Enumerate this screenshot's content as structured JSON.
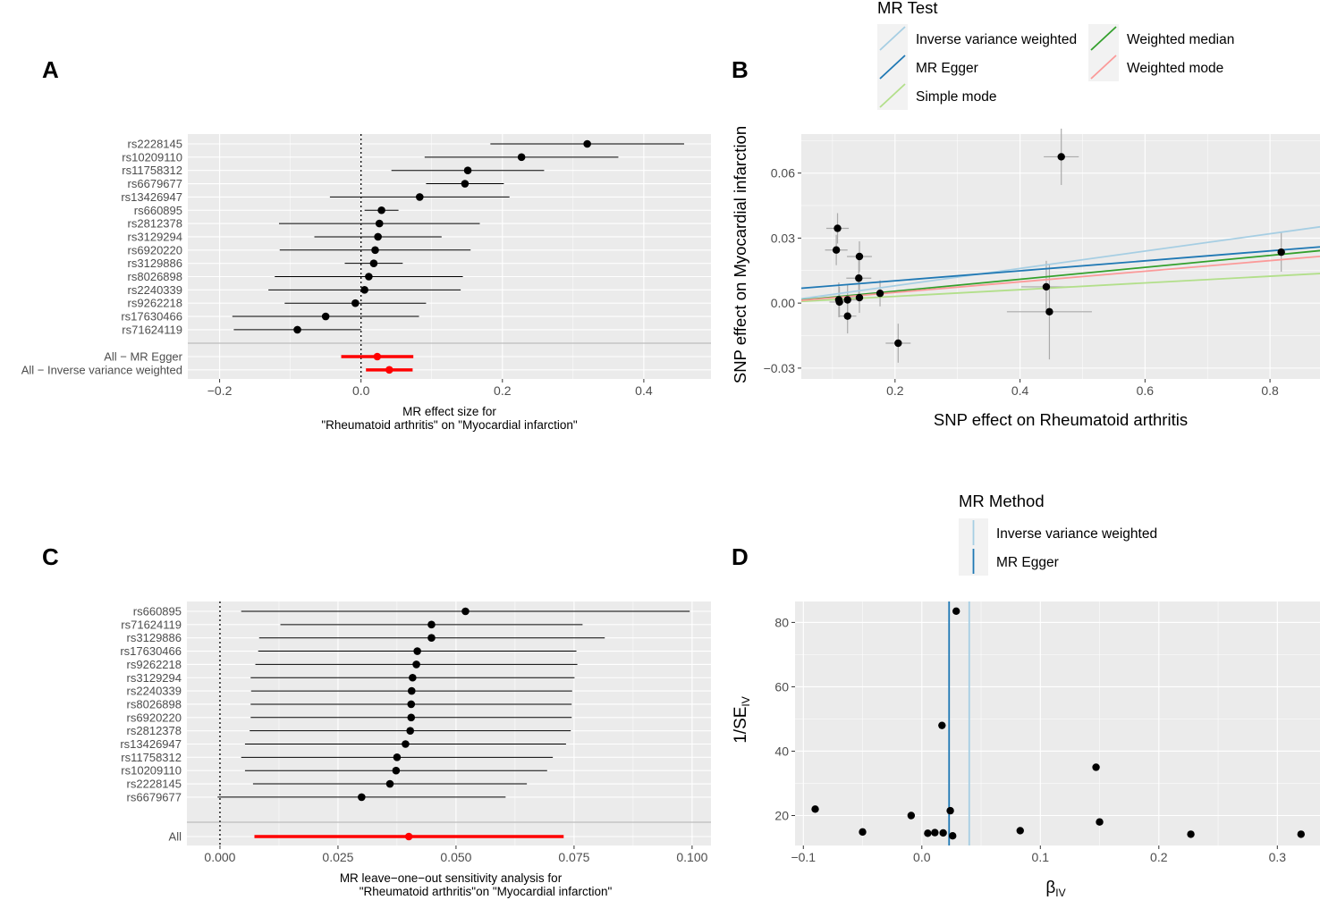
{
  "panels": {
    "A": "A",
    "B": "B",
    "C": "C",
    "D": "D"
  },
  "colors": {
    "panel_bg": "#ebebeb",
    "grid": "#ffffff",
    "point": "#000000",
    "summary": "#ff0000",
    "ivw": "#a6cee3",
    "egger": "#1f78b4",
    "simple_mode": "#b2df8a",
    "weighted_median": "#33a02c",
    "weighted_mode": "#fb9a99",
    "errbar": "#aaaaaa"
  },
  "chart_data": [
    {
      "id": "A",
      "type": "forest",
      "xlabel_line1": "MR effect size for",
      "xlabel_line2": "\"Rheumatoid arthritis\" on \"Myocardial infarction\"",
      "xlim": [
        -0.245,
        0.495
      ],
      "xticks": [
        -0.2,
        0.0,
        0.2,
        0.4
      ],
      "xtick_labels": [
        "−0.2",
        "0.0",
        "0.2",
        "0.4"
      ],
      "reference_x": 0,
      "snps": [
        {
          "label": "rs2228145",
          "b": 0.32,
          "lo": 0.183,
          "hi": 0.457
        },
        {
          "label": "rs10209110",
          "b": 0.227,
          "lo": 0.09,
          "hi": 0.364
        },
        {
          "label": "rs11758312",
          "b": 0.151,
          "lo": 0.043,
          "hi": 0.259
        },
        {
          "label": "rs6679677",
          "b": 0.147,
          "lo": 0.092,
          "hi": 0.202
        },
        {
          "label": "rs13426947",
          "b": 0.083,
          "lo": -0.044,
          "hi": 0.21
        },
        {
          "label": "rs660895",
          "b": 0.029,
          "lo": 0.005,
          "hi": 0.053
        },
        {
          "label": "rs2812378",
          "b": 0.026,
          "lo": -0.116,
          "hi": 0.168
        },
        {
          "label": "rs3129294",
          "b": 0.024,
          "lo": -0.066,
          "hi": 0.114
        },
        {
          "label": "rs6920220",
          "b": 0.02,
          "lo": -0.115,
          "hi": 0.155
        },
        {
          "label": "rs3129886",
          "b": 0.018,
          "lo": -0.023,
          "hi": 0.059
        },
        {
          "label": "rs8026898",
          "b": 0.011,
          "lo": -0.122,
          "hi": 0.144
        },
        {
          "label": "rs2240339",
          "b": 0.005,
          "lo": -0.131,
          "hi": 0.141
        },
        {
          "label": "rs9262218",
          "b": -0.008,
          "lo": -0.108,
          "hi": 0.092
        },
        {
          "label": "rs17630466",
          "b": -0.05,
          "lo": -0.182,
          "hi": 0.082
        },
        {
          "label": "rs71624119",
          "b": -0.09,
          "lo": -0.18,
          "hi": 0.0
        }
      ],
      "summary": [
        {
          "label": "All − MR Egger",
          "b": 0.023,
          "lo": -0.028,
          "hi": 0.074
        },
        {
          "label": "All − Inverse variance weighted",
          "b": 0.04,
          "lo": 0.007,
          "hi": 0.073
        }
      ]
    },
    {
      "id": "B",
      "type": "scatter",
      "xlabel": "SNP effect on Rheumatoid arthritis",
      "ylabel": "SNP effect on Myocardial infarction",
      "xlim": [
        0.05,
        0.88
      ],
      "ylim": [
        -0.035,
        0.078
      ],
      "xticks": [
        0.2,
        0.4,
        0.6,
        0.8
      ],
      "xtick_labels": [
        "0.2",
        "0.4",
        "0.6",
        "0.8"
      ],
      "yticks": [
        -0.03,
        0.0,
        0.03,
        0.06
      ],
      "ytick_labels": [
        "−0.03",
        "0.00",
        "0.03",
        "0.06"
      ],
      "legend_title": "MR Test",
      "points": [
        {
          "x": 0.466,
          "y": 0.0675,
          "xse": 0.028,
          "yse": 0.013
        },
        {
          "x": 0.108,
          "y": 0.0345,
          "xse": 0.018,
          "yse": 0.007
        },
        {
          "x": 0.106,
          "y": 0.0245,
          "xse": 0.018,
          "yse": 0.007
        },
        {
          "x": 0.143,
          "y": 0.0215,
          "xse": 0.02,
          "yse": 0.007
        },
        {
          "x": 0.142,
          "y": 0.0115,
          "xse": 0.02,
          "yse": 0.009
        },
        {
          "x": 0.176,
          "y": 0.0045,
          "xse": 0.012,
          "yse": 0.006
        },
        {
          "x": 0.11,
          "y": 0.0015,
          "xse": 0.016,
          "yse": 0.008
        },
        {
          "x": 0.124,
          "y": 0.0015,
          "xse": 0.017,
          "yse": 0.007
        },
        {
          "x": 0.143,
          "y": 0.0025,
          "xse": 0.018,
          "yse": 0.007
        },
        {
          "x": 0.111,
          "y": 0.0005,
          "xse": 0.016,
          "yse": 0.007
        },
        {
          "x": 0.124,
          "y": -0.006,
          "xse": 0.014,
          "yse": 0.008
        },
        {
          "x": 0.205,
          "y": -0.0185,
          "xse": 0.02,
          "yse": 0.009
        },
        {
          "x": 0.442,
          "y": 0.0075,
          "xse": 0.04,
          "yse": 0.012
        },
        {
          "x": 0.447,
          "y": -0.004,
          "xse": 0.068,
          "yse": 0.022
        },
        {
          "x": 0.818,
          "y": 0.0235,
          "xse": 0.006,
          "yse": 0.009
        }
      ],
      "lines": [
        {
          "name": "Inverse variance weighted",
          "intercept": 0.0,
          "slope": 0.04,
          "color_key": "ivw",
          "legend_col": 0
        },
        {
          "name": "MR Egger",
          "intercept": 0.0057,
          "slope": 0.023,
          "color_key": "egger",
          "legend_col": 0
        },
        {
          "name": "Simple mode",
          "intercept": 0.0,
          "slope": 0.0155,
          "color_key": "simple_mode",
          "legend_col": 0
        },
        {
          "name": "Weighted median",
          "intercept": 0.0,
          "slope": 0.0275,
          "color_key": "weighted_median",
          "legend_col": 1
        },
        {
          "name": "Weighted mode",
          "intercept": 0.0,
          "slope": 0.0245,
          "color_key": "weighted_mode",
          "legend_col": 1
        }
      ]
    },
    {
      "id": "C",
      "type": "forest",
      "xlabel_line1": "MR leave−one−out sensitivity analysis for",
      "xlabel_line2": "\"Rheumatoid arthritis\"on \"Myocardial infarction\"",
      "xlim": [
        -0.007,
        0.104
      ],
      "xticks": [
        0.0,
        0.025,
        0.05,
        0.075,
        0.1
      ],
      "xtick_labels": [
        "0.000",
        "0.025",
        "0.050",
        "0.075",
        "0.100"
      ],
      "reference_x": 0,
      "snps": [
        {
          "label": "rs660895",
          "b": 0.052,
          "lo": 0.0045,
          "hi": 0.0995
        },
        {
          "label": "rs71624119",
          "b": 0.0448,
          "lo": 0.0128,
          "hi": 0.0768
        },
        {
          "label": "rs3129886",
          "b": 0.0448,
          "lo": 0.0083,
          "hi": 0.0815
        },
        {
          "label": "rs17630466",
          "b": 0.0418,
          "lo": 0.0081,
          "hi": 0.0755
        },
        {
          "label": "rs9262218",
          "b": 0.0416,
          "lo": 0.0075,
          "hi": 0.0757
        },
        {
          "label": "rs3129294",
          "b": 0.0408,
          "lo": 0.0065,
          "hi": 0.0751
        },
        {
          "label": "rs2240339",
          "b": 0.0406,
          "lo": 0.0066,
          "hi": 0.0746
        },
        {
          "label": "rs8026898",
          "b": 0.0405,
          "lo": 0.0065,
          "hi": 0.0745
        },
        {
          "label": "rs6920220",
          "b": 0.0405,
          "lo": 0.0065,
          "hi": 0.0745
        },
        {
          "label": "rs2812378",
          "b": 0.0403,
          "lo": 0.0063,
          "hi": 0.0743
        },
        {
          "label": "rs13426947",
          "b": 0.0393,
          "lo": 0.0053,
          "hi": 0.0733
        },
        {
          "label": "rs11758312",
          "b": 0.0375,
          "lo": 0.0045,
          "hi": 0.0705
        },
        {
          "label": "rs10209110",
          "b": 0.0373,
          "lo": 0.0053,
          "hi": 0.0693
        },
        {
          "label": "rs2228145",
          "b": 0.036,
          "lo": 0.007,
          "hi": 0.065
        },
        {
          "label": "rs6679677",
          "b": 0.03,
          "lo": -0.0005,
          "hi": 0.0605
        }
      ],
      "summary": [
        {
          "label": "All",
          "b": 0.04,
          "lo": 0.0073,
          "hi": 0.0728
        }
      ]
    },
    {
      "id": "D",
      "type": "funnel",
      "xlabel": "β",
      "xlabel_sub": "IV",
      "ylabel": "1/SE",
      "ylabel_sub": "IV",
      "xlim": [
        -0.107,
        0.336
      ],
      "ylim": [
        10.7,
        86.5
      ],
      "xticks": [
        -0.1,
        0.0,
        0.1,
        0.2,
        0.3
      ],
      "xtick_labels": [
        "−0.1",
        "0.0",
        "0.1",
        "0.2",
        "0.3"
      ],
      "yticks": [
        20,
        40,
        60,
        80
      ],
      "ytick_labels": [
        "20",
        "40",
        "60",
        "80"
      ],
      "legend_title": "MR Method",
      "points": [
        {
          "x": 0.029,
          "y": 83.5
        },
        {
          "x": 0.017,
          "y": 48.0
        },
        {
          "x": 0.147,
          "y": 35.0
        },
        {
          "x": -0.09,
          "y": 22.0
        },
        {
          "x": 0.024,
          "y": 21.5
        },
        {
          "x": -0.009,
          "y": 20.0
        },
        {
          "x": 0.15,
          "y": 18.0
        },
        {
          "x": 0.083,
          "y": 15.3
        },
        {
          "x": -0.05,
          "y": 14.9
        },
        {
          "x": 0.005,
          "y": 14.5
        },
        {
          "x": 0.011,
          "y": 14.7
        },
        {
          "x": 0.018,
          "y": 14.6
        },
        {
          "x": 0.026,
          "y": 13.7
        },
        {
          "x": 0.227,
          "y": 14.2
        },
        {
          "x": 0.32,
          "y": 14.2
        }
      ],
      "vlines": [
        {
          "name": "Inverse variance weighted",
          "x": 0.04,
          "color_key": "ivw"
        },
        {
          "name": "MR Egger",
          "x": 0.023,
          "color_key": "egger"
        }
      ]
    }
  ]
}
